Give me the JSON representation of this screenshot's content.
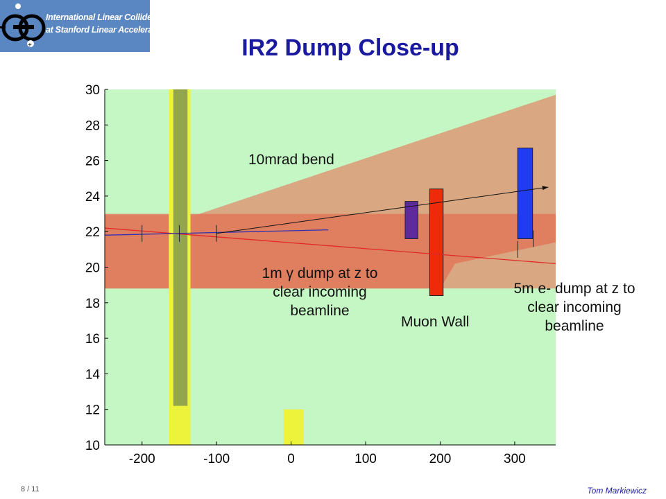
{
  "header": {
    "logo_lines": [
      "International Linear Collider",
      "at Stanford Linear Accelerator Center"
    ],
    "title": "IR2 Dump Close-up"
  },
  "colors": {
    "background": "#c4f7c4",
    "envelope_wide": "#d9a882",
    "envelope_core": "#e0785a",
    "yellow_band": "#ecf33a",
    "olive_band": "#93a54d",
    "muon_wall": "#ee2a0a",
    "electron_dump": "#1f3cf2",
    "photon_dump": "#5e2a9c",
    "title": "#1a1a9e"
  },
  "chart_data": {
    "type": "diagram-plot",
    "xlim": [
      -250,
      355
    ],
    "ylim": [
      10,
      30
    ],
    "xticks": [
      -200,
      -100,
      0,
      100,
      200,
      300
    ],
    "yticks": [
      10,
      12,
      14,
      16,
      18,
      20,
      22,
      24,
      26,
      28,
      30
    ],
    "grid": false,
    "regions": [
      {
        "name": "beam-envelope-wide",
        "polygon": [
          [
            -250,
            22.9
          ],
          [
            -130,
            22.9
          ],
          [
            355,
            29.7
          ],
          [
            355,
            18.8
          ],
          [
            -250,
            18.8
          ]
        ]
      },
      {
        "name": "beam-envelope-core",
        "polygon": [
          [
            -250,
            23.0
          ],
          [
            355,
            23.0
          ],
          [
            355,
            21.4
          ],
          [
            220,
            20.2
          ],
          [
            200,
            18.8
          ],
          [
            -250,
            18.8
          ]
        ]
      },
      {
        "name": "yellow-column-left",
        "x": [
          -164,
          -135
        ],
        "y": [
          10,
          30
        ]
      },
      {
        "name": "olive-column-left",
        "x": [
          -158,
          -139
        ],
        "y": [
          12.2,
          30
        ]
      },
      {
        "name": "yellow-block-center",
        "x": [
          -10,
          17
        ],
        "y": [
          10,
          12
        ]
      },
      {
        "name": "photon-dump",
        "x": [
          153,
          170
        ],
        "y": [
          21.6,
          23.7
        ]
      },
      {
        "name": "muon-wall",
        "x": [
          186,
          204
        ],
        "y": [
          18.4,
          24.4
        ]
      },
      {
        "name": "electron-dump",
        "x": [
          304,
          324
        ],
        "y": [
          21.6,
          26.7
        ]
      }
    ],
    "lines": [
      {
        "name": "incoming-beamline",
        "points": [
          [
            -250,
            22.2
          ],
          [
            355,
            20.2
          ]
        ]
      },
      {
        "name": "disrupted-beam",
        "points": [
          [
            -250,
            21.8
          ],
          [
            50,
            22.1
          ]
        ]
      },
      {
        "name": "bend-line",
        "points": [
          [
            -100,
            21.9
          ],
          [
            345,
            24.5
          ]
        ]
      }
    ],
    "tick_markers": [
      {
        "x": -200,
        "y": 21.9
      },
      {
        "x": -150,
        "y": 21.9
      },
      {
        "x": -100,
        "y": 21.9
      },
      {
        "x": 304,
        "y": 21.0
      },
      {
        "x": 325,
        "y": 21.6
      }
    ]
  },
  "annotations": {
    "bend": "10mrad bend",
    "photon_dump": [
      "1m γ dump at z to",
      "clear incoming",
      "beamline"
    ],
    "muon_wall": "Muon Wall",
    "electron_dump": [
      "5m e- dump at z to",
      "clear incoming",
      "beamline"
    ]
  },
  "footer": {
    "page": "8 / 11",
    "author": "Tom Markiewicz"
  }
}
